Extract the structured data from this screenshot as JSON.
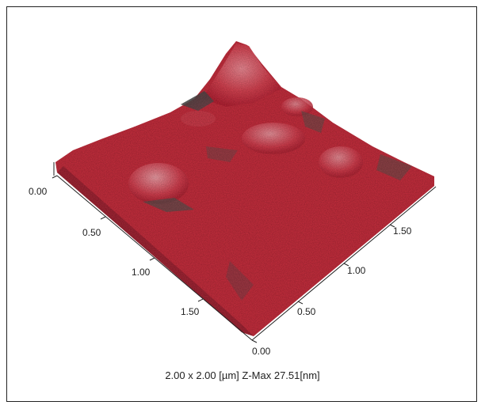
{
  "scan": {
    "caption": "2.00 x 2.00 [µm]  Z-Max 27.51[nm]",
    "left_axis_ticks": [
      "0.00",
      "0.50",
      "1.00",
      "1.50"
    ],
    "right_axis_ticks": [
      "0.00",
      "0.50",
      "1.00",
      "1.50"
    ],
    "surface_color": "#c8303f",
    "shadow_color": "#4a5a55",
    "highlight_color": "#e87f8a"
  }
}
